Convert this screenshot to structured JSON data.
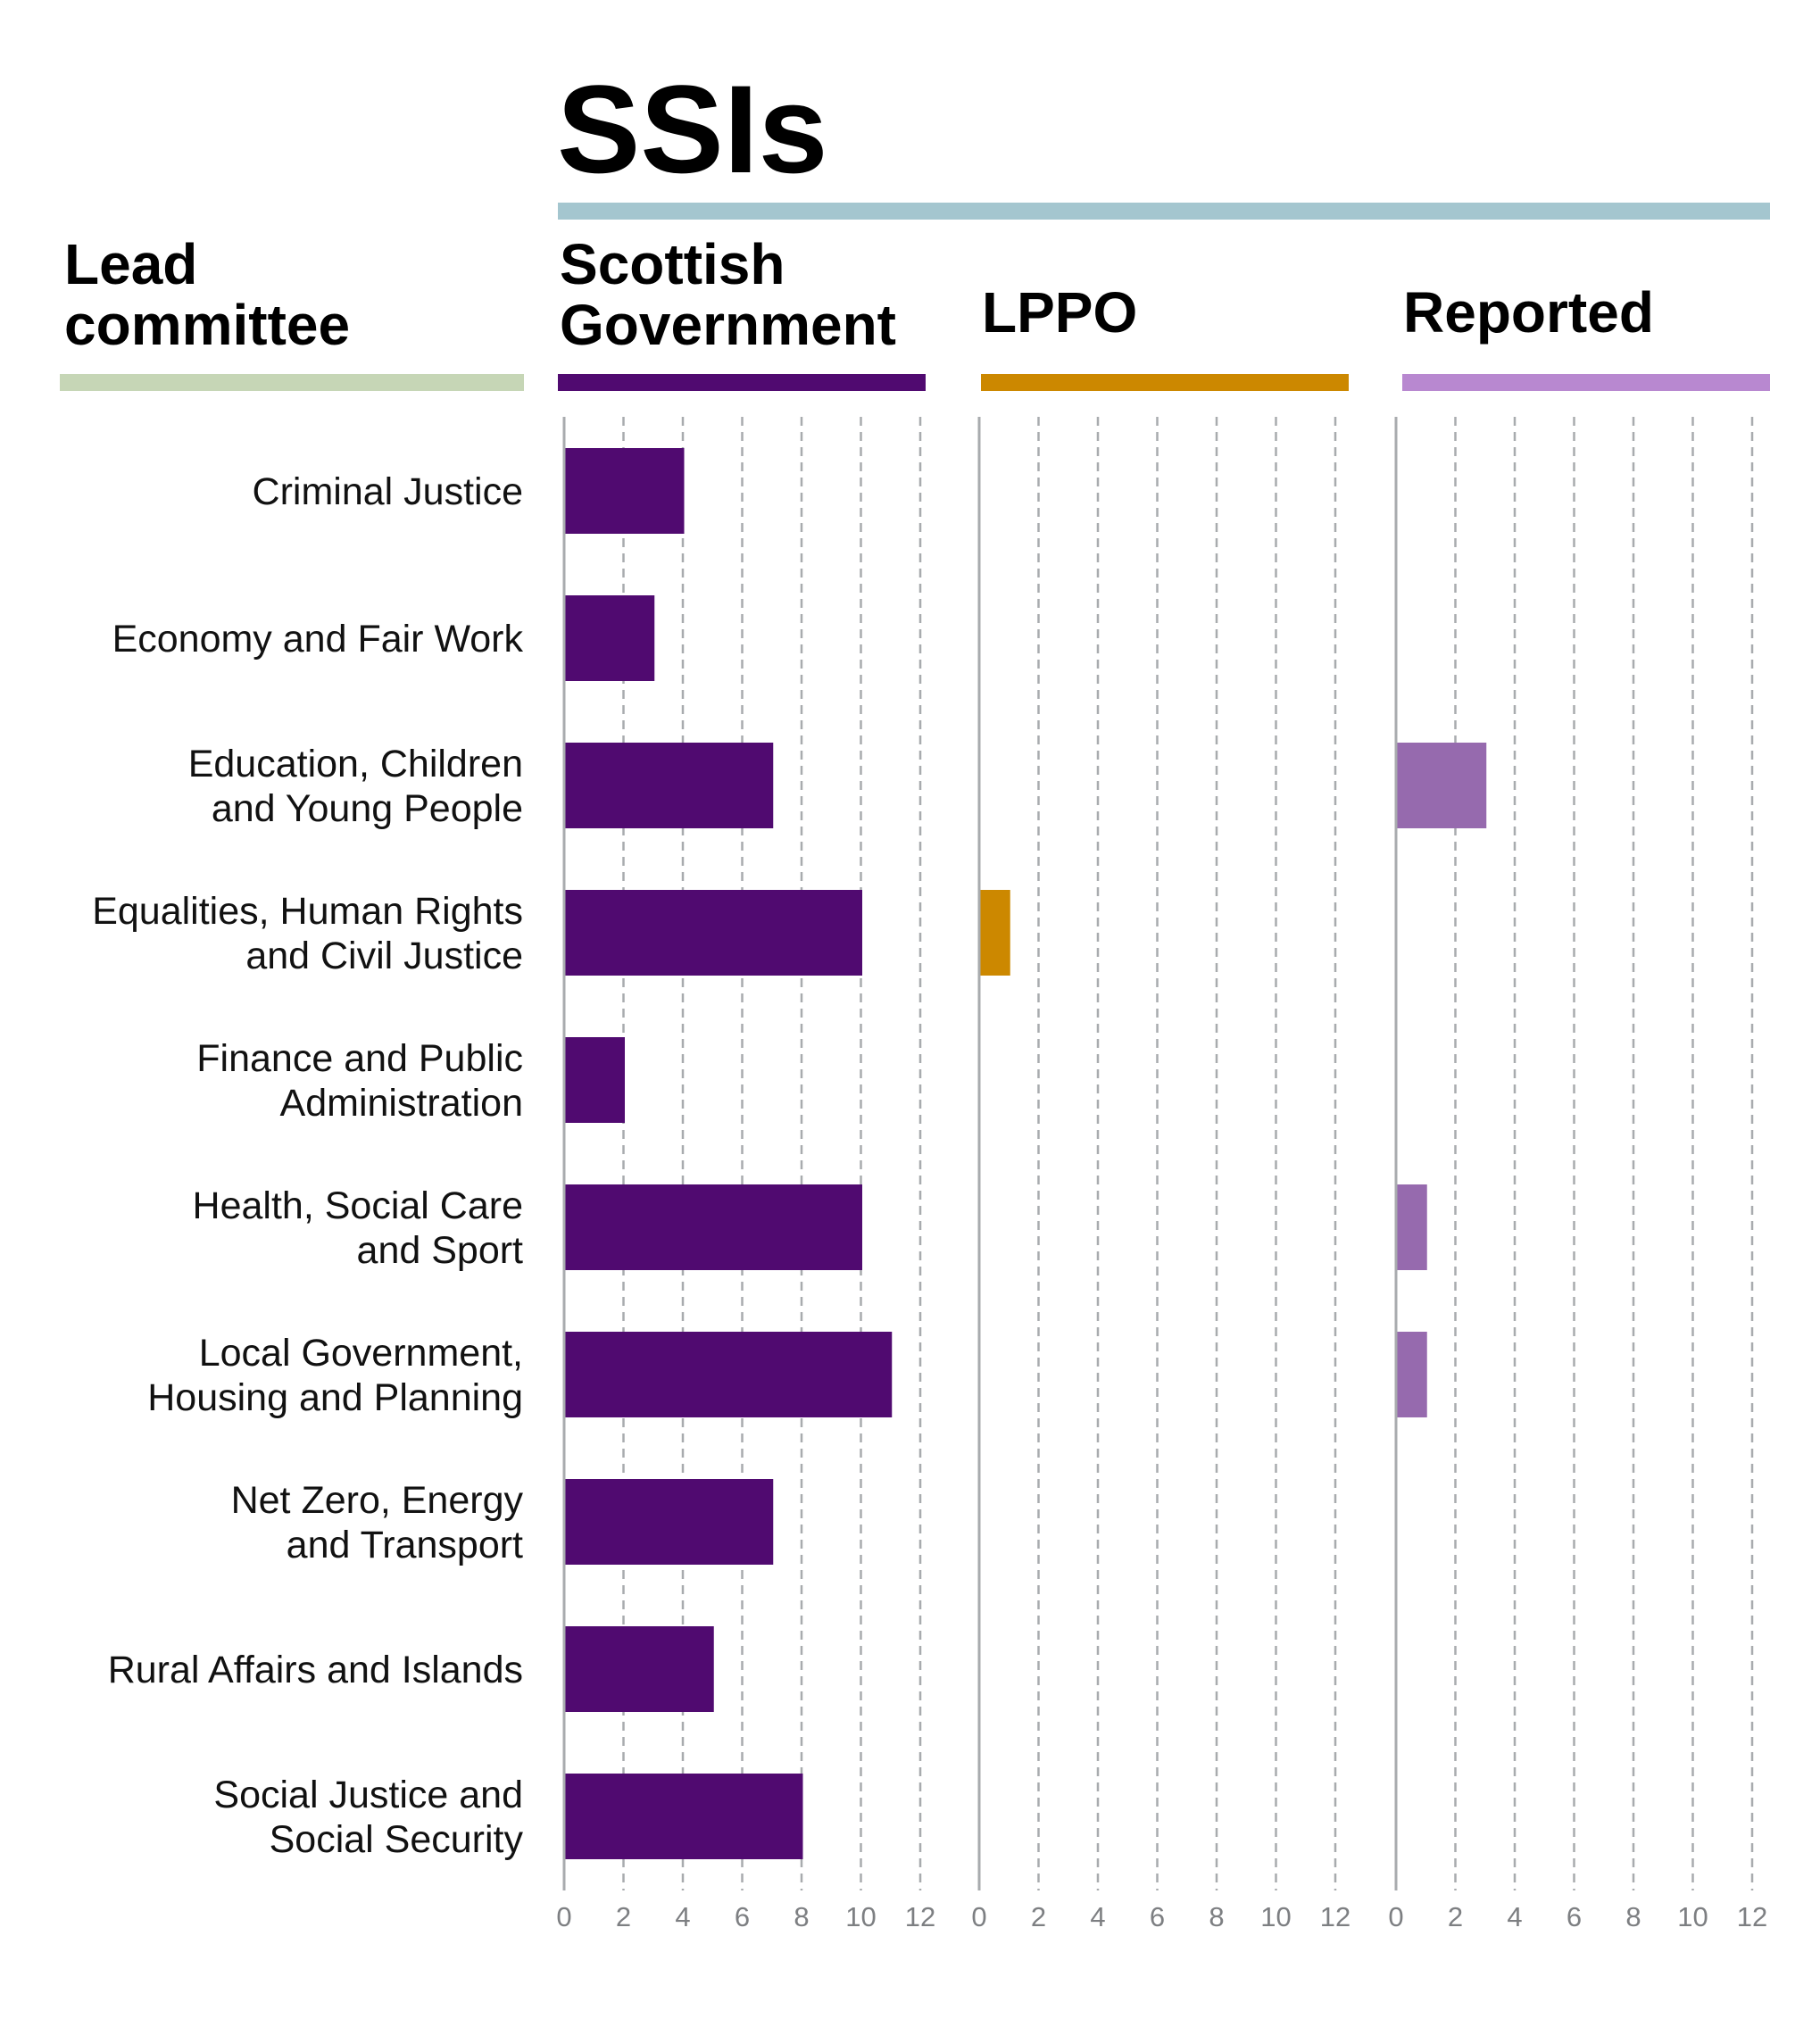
{
  "title": "SSIs",
  "headers": {
    "lead_line1": "Lead",
    "lead_line2": "committee",
    "sg_line1": "Scottish",
    "sg_line2": "Government",
    "lppo": "LPPO",
    "reported": "Reported"
  },
  "colors": {
    "title_rule": "#a4c6cf",
    "lead": "#c6d6b6",
    "scottish_government": "#500a70",
    "lppo": "#cc8800",
    "reported_rule": "#b888d0",
    "reported_bar": "#966aae",
    "grid": "#a8abae"
  },
  "chart_data": {
    "type": "bar",
    "orientation": "horizontal",
    "title": "SSIs",
    "categories": [
      [
        "Criminal Justice"
      ],
      [
        "Economy and Fair Work"
      ],
      [
        "Education, Children",
        "and Young People"
      ],
      [
        "Equalities, Human Rights",
        "and Civil Justice"
      ],
      [
        "Finance and Public",
        "Administration"
      ],
      [
        "Health, Social Care",
        "and Sport"
      ],
      [
        "Local Government,",
        "Housing and Planning"
      ],
      [
        "Net Zero, Energy",
        "and Transport"
      ],
      [
        "Rural Affairs and Islands"
      ],
      [
        "Social Justice and",
        "Social Security"
      ]
    ],
    "series": [
      {
        "name": "Scottish Government",
        "values": [
          4,
          3,
          7,
          10,
          2,
          10,
          11,
          7,
          5,
          8
        ]
      },
      {
        "name": "LPPO",
        "values": [
          0,
          0,
          0,
          1,
          0,
          0,
          0,
          0,
          0,
          0
        ]
      },
      {
        "name": "Reported",
        "values": [
          0,
          0,
          3,
          0,
          0,
          1,
          1,
          0,
          0,
          0
        ]
      }
    ],
    "xlim": [
      0,
      12.5
    ],
    "xticks": [
      "0",
      "2",
      "4",
      "6",
      "8",
      "10",
      "12"
    ],
    "grid": true
  }
}
